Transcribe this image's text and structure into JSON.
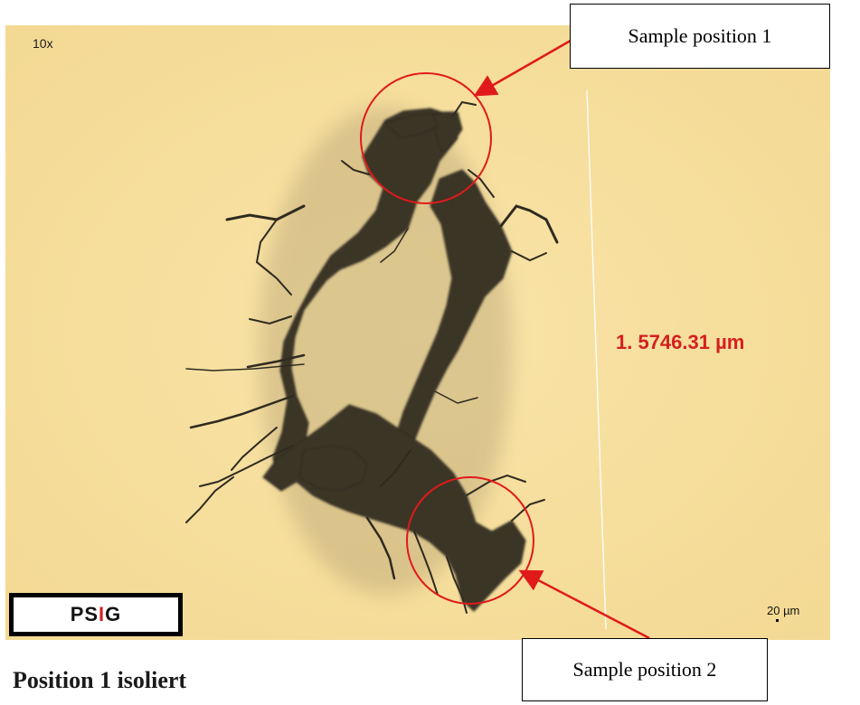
{
  "micrograph": {
    "magnification": "10x",
    "measurement": "1.  5746.31 µm",
    "scale_bar": "20 µm",
    "logo": {
      "part1": "PS",
      "part2": "I",
      "part3": "G"
    }
  },
  "callouts": {
    "position_1": "Sample position 1",
    "position_2": "Sample position 2"
  },
  "heading": "Position 1 isoliert",
  "colors": {
    "background": "#f8e1a2",
    "particle": "#3a3428",
    "annotation_red": "#d42020"
  }
}
